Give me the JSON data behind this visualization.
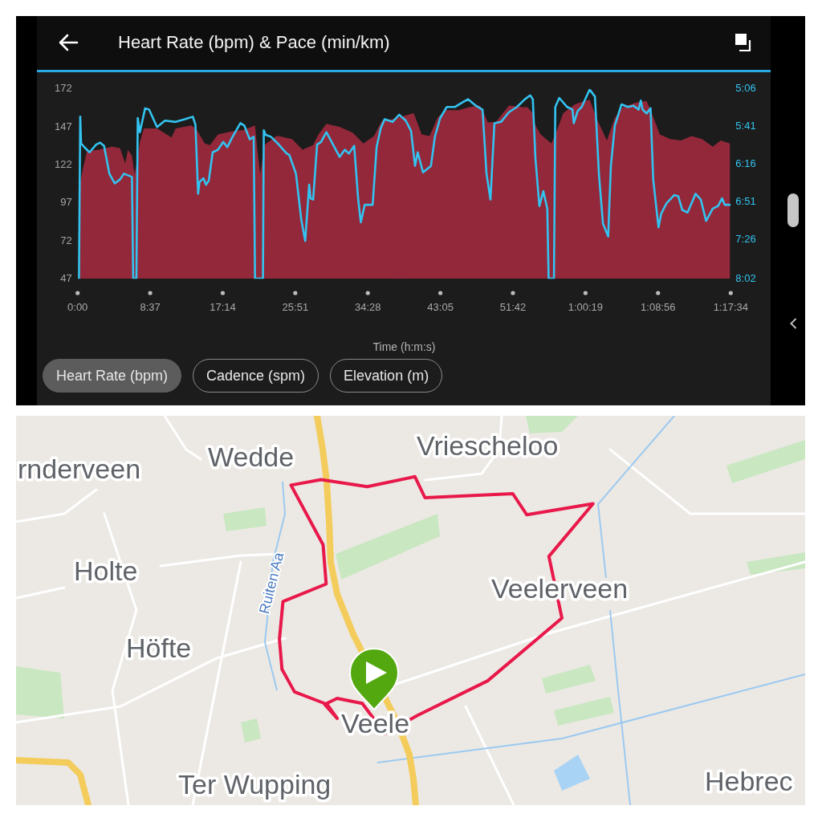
{
  "chart_data": {
    "type": "area",
    "title": "Heart Rate (bpm) & Pace (min/km)",
    "xlabel": "Time (h:m:s)",
    "marker": "none",
    "xlim": [
      0,
      77.5667
    ],
    "xticks": [
      {
        "value": 0,
        "label": "0:00"
      },
      {
        "value": 8.6167,
        "label": "8:37"
      },
      {
        "value": 17.2333,
        "label": "17:14"
      },
      {
        "value": 25.85,
        "label": "25:51"
      },
      {
        "value": 34.4667,
        "label": "34:28"
      },
      {
        "value": 43.0833,
        "label": "43:05"
      },
      {
        "value": 51.7,
        "label": "51:42"
      },
      {
        "value": 60.3167,
        "label": "1:00:19"
      },
      {
        "value": 68.9333,
        "label": "1:08:56"
      },
      {
        "value": 77.5667,
        "label": "1:17:34"
      }
    ],
    "ylim": [
      47,
      172
    ],
    "yticks": [
      47,
      72,
      97,
      122,
      147,
      172
    ],
    "y2lim": [
      8.0333,
      5.1
    ],
    "y2ticks": [
      {
        "value": 5.1,
        "label": "5:06"
      },
      {
        "value": 5.6833,
        "label": "5:41"
      },
      {
        "value": 6.2667,
        "label": "6:16"
      },
      {
        "value": 6.85,
        "label": "6:51"
      },
      {
        "value": 7.4333,
        "label": "7:26"
      },
      {
        "value": 8.0333,
        "label": "8:02"
      }
    ],
    "series": [
      {
        "type": "area",
        "color": "#92283a",
        "x": [
          0.25,
          0.57,
          1.1,
          2.52,
          4.09,
          5.03,
          5.66,
          5.97,
          6.45,
          6.76,
          7.08,
          7.39,
          7.86,
          9.43,
          11.16,
          11.64,
          13.52,
          14.15,
          15.09,
          15.72,
          16.67,
          18.24,
          19.81,
          21.07,
          21.38,
          21.7,
          22.17,
          23.58,
          23.89,
          25.46,
          26.71,
          27.97,
          28.6,
          29.54,
          31.12,
          32.69,
          33.94,
          35.2,
          36.14,
          37.4,
          38.66,
          39.92,
          40.86,
          41.8,
          42.74,
          43.69,
          45.26,
          46.52,
          47.77,
          48.25,
          48.72,
          49.66,
          51.23,
          52.8,
          53.43,
          54.06,
          54.37,
          55.0,
          56.26,
          56.88,
          57.67,
          59.09,
          60.81,
          61.6,
          62.86,
          63.8,
          64.74,
          66.31,
          67.57,
          68.2,
          69.14,
          70.4,
          71.66,
          72.92,
          74.17,
          75.43,
          76.37,
          77.47
        ],
        "values": [
          108,
          118,
          131,
          132,
          134,
          133,
          123,
          132,
          128,
          116,
          125,
          137,
          146,
          146,
          140,
          146,
          148,
          145,
          136,
          135,
          142,
          144,
          145,
          148,
          130,
          116,
          135,
          141,
          141,
          139,
          132,
          135,
          142,
          149,
          147,
          143,
          136,
          141,
          151,
          152,
          154,
          156,
          142,
          141,
          153,
          158,
          158,
          160,
          161,
          156,
          150,
          150,
          161,
          160,
          160,
          156,
          148,
          142,
          136,
          144,
          156,
          162,
          165,
          153,
          138,
          153,
          160,
          163,
          164,
          156,
          142,
          139,
          138,
          141,
          139,
          134,
          138,
          136
        ]
      },
      {
        "type": "line",
        "axis": "y2",
        "color": "#33c3f0",
        "x": [
          0.16,
          0.31,
          0.41,
          0.79,
          1.42,
          2.2,
          2.67,
          3.14,
          3.77,
          4.4,
          5.03,
          5.5,
          6.45,
          6.6,
          6.98,
          7.14,
          7.39,
          8.02,
          8.49,
          9.43,
          10.38,
          11.64,
          12.74,
          13.68,
          13.99,
          14.31,
          14.47,
          14.94,
          15.25,
          15.57,
          16.04,
          16.67,
          17.3,
          17.77,
          18.4,
          19.34,
          19.81,
          20.44,
          20.91,
          21.07,
          22.01,
          22.11,
          22.33,
          22.96,
          23.74,
          24.84,
          25.14,
          25.93,
          26.56,
          27.03,
          27.5,
          27.66,
          27.97,
          28.44,
          28.91,
          29.54,
          30.17,
          31.11,
          31.74,
          32.21,
          32.84,
          33.0,
          33.31,
          33.63,
          34.1,
          35.04,
          35.51,
          35.99,
          36.46,
          37.4,
          38.19,
          38.97,
          39.6,
          40.07,
          40.39,
          41.02,
          41.96,
          42.43,
          43.06,
          43.84,
          44.79,
          45.57,
          46.36,
          47.3,
          48.09,
          48.56,
          49.03,
          49.5,
          50.29,
          51.23,
          52.17,
          53.12,
          53.75,
          54.06,
          54.37,
          54.84,
          55.31,
          55.78,
          55.94,
          56.57,
          56.73,
          57.2,
          58.14,
          58.77,
          58.93,
          59.4,
          59.87,
          60.81,
          61.44,
          61.91,
          62.39,
          63.01,
          63.33,
          63.8,
          64.59,
          65.37,
          66.0,
          66.63,
          66.88,
          67.1,
          67.57,
          68.04,
          68.36,
          68.99,
          69.3,
          69.93,
          70.87,
          71.34,
          71.81,
          72.44,
          73.39,
          74.01,
          74.64,
          75.43,
          76.06,
          76.53,
          76.85,
          77.48
        ],
        "values": [
          8.03,
          5.53,
          5.94,
          6.0,
          6.08,
          5.96,
          5.93,
          5.98,
          6.41,
          6.56,
          6.5,
          6.41,
          6.46,
          8.03,
          8.03,
          5.55,
          5.77,
          5.4,
          5.42,
          5.69,
          5.59,
          5.61,
          5.57,
          5.53,
          5.65,
          6.72,
          6.54,
          6.48,
          6.58,
          6.52,
          6.08,
          6.04,
          5.92,
          6.0,
          5.84,
          5.63,
          5.67,
          5.88,
          5.84,
          8.03,
          8.03,
          5.74,
          5.81,
          5.84,
          5.94,
          6.1,
          6.12,
          6.41,
          7.12,
          7.45,
          6.58,
          6.79,
          6.81,
          5.96,
          5.92,
          5.77,
          5.92,
          6.15,
          6.04,
          6.1,
          5.98,
          6.25,
          6.79,
          7.16,
          6.89,
          6.89,
          6.0,
          5.71,
          5.57,
          5.61,
          5.5,
          5.59,
          5.75,
          6.29,
          6.08,
          6.39,
          6.29,
          5.84,
          5.55,
          5.38,
          5.38,
          5.32,
          5.26,
          5.36,
          5.42,
          6.41,
          6.81,
          5.63,
          5.61,
          5.46,
          5.38,
          5.26,
          5.2,
          5.26,
          6.17,
          6.91,
          6.68,
          6.95,
          8.03,
          8.03,
          5.38,
          5.24,
          5.38,
          5.42,
          5.63,
          5.44,
          5.38,
          5.11,
          5.22,
          6.41,
          7.18,
          7.38,
          6.29,
          5.67,
          5.34,
          5.38,
          5.36,
          5.42,
          5.28,
          5.42,
          5.48,
          5.4,
          6.5,
          7.24,
          7.03,
          6.87,
          6.74,
          6.76,
          6.97,
          7.01,
          6.72,
          6.81,
          7.14,
          6.95,
          6.91,
          6.79,
          6.89,
          6.89
        ]
      }
    ],
    "annotations": [
      "Heart Rate (bpm)",
      "Cadence (spm)",
      "Elevation (m)",
      "rnderveen",
      "Wedde",
      "Vriescheloo",
      "Holte",
      "Ruiten Aa",
      "Veelerveen",
      "Höfte",
      "Veele",
      "Ter Wupping",
      "Hebrec"
    ]
  }
}
